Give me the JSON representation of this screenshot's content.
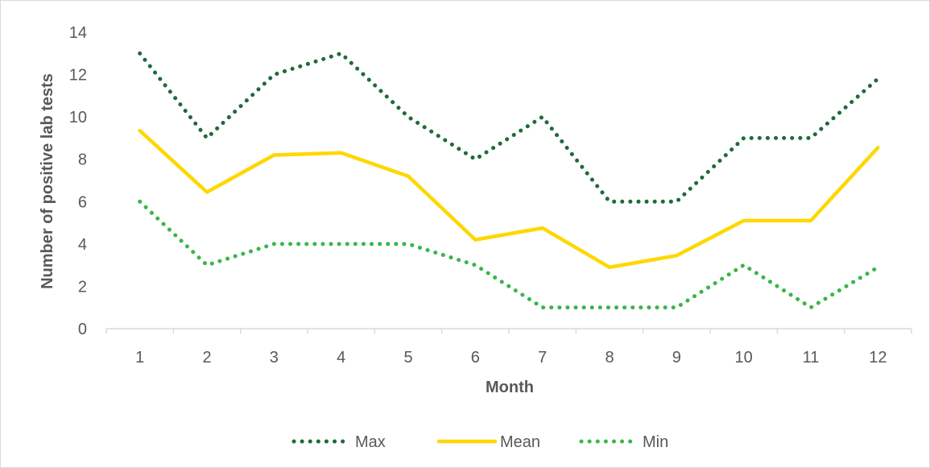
{
  "chart_data": {
    "type": "line",
    "title": "",
    "xlabel": "Month",
    "ylabel": "Number of positive lab tests",
    "categories": [
      "1",
      "2",
      "3",
      "4",
      "5",
      "6",
      "7",
      "8",
      "9",
      "10",
      "11",
      "12"
    ],
    "yticks": [
      "0",
      "2",
      "4",
      "6",
      "8",
      "10",
      "12",
      "14"
    ],
    "ylim": [
      0,
      14
    ],
    "grid": false,
    "legend": "bottom",
    "series": [
      {
        "name": "Max",
        "style": "dotted",
        "color": "#1e6b3a",
        "values": [
          13,
          9,
          12,
          13,
          10,
          8,
          10,
          6,
          6,
          9,
          9,
          11.8
        ]
      },
      {
        "name": "Mean",
        "style": "solid",
        "color": "#ffd700",
        "values": [
          9.35,
          6.45,
          8.2,
          8.3,
          7.2,
          4.2,
          4.75,
          2.9,
          3.45,
          5.1,
          5.1,
          8.55
        ]
      },
      {
        "name": "Min",
        "style": "dotted",
        "color": "#3bb54a",
        "values": [
          6,
          3,
          4,
          4,
          4,
          3,
          1,
          1,
          1,
          3,
          1,
          2.9
        ]
      }
    ]
  }
}
